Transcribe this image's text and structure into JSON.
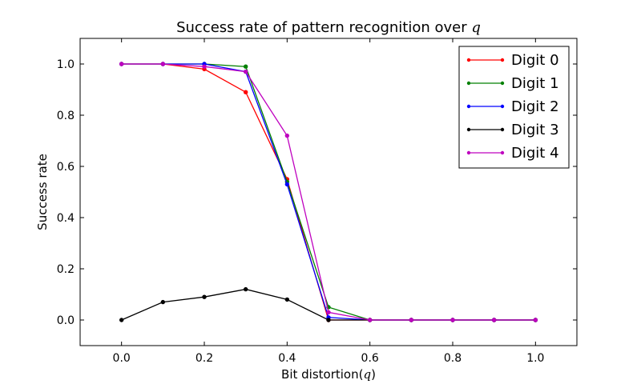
{
  "chart_data": {
    "type": "line",
    "title": "Success rate of pattern recognition over ",
    "title_symbol": "q",
    "xlabel": "Bit distortion(",
    "xlabel_symbol": "q",
    "xlabel_close": ")",
    "ylabel": "Success rate",
    "xlim": [
      -0.1,
      1.1
    ],
    "ylim": [
      -0.1,
      1.1
    ],
    "xticks": [
      0.0,
      0.2,
      0.4,
      0.6,
      0.8,
      1.0
    ],
    "yticks": [
      0.0,
      0.2,
      0.4,
      0.6,
      0.8,
      1.0
    ],
    "xtick_labels": [
      "0.0",
      "0.2",
      "0.4",
      "0.6",
      "0.8",
      "1.0"
    ],
    "ytick_labels": [
      "0.0",
      "0.2",
      "0.4",
      "0.6",
      "0.8",
      "1.0"
    ],
    "grid": false,
    "legend_position": "top-right",
    "x": [
      0.0,
      0.1,
      0.2,
      0.3,
      0.4,
      0.5,
      0.6,
      0.7,
      0.8,
      0.9,
      1.0
    ],
    "series": [
      {
        "name": "Digit 0",
        "color": "#ff0000",
        "values": [
          1.0,
          1.0,
          0.98,
          0.89,
          0.55,
          0.0,
          0.0,
          0.0,
          0.0,
          0.0,
          0.0
        ]
      },
      {
        "name": "Digit 1",
        "color": "#008000",
        "values": [
          1.0,
          1.0,
          1.0,
          0.99,
          0.54,
          0.05,
          0.0,
          0.0,
          0.0,
          0.0,
          0.0
        ]
      },
      {
        "name": "Digit 2",
        "color": "#0000ff",
        "values": [
          1.0,
          1.0,
          1.0,
          0.97,
          0.53,
          0.01,
          0.0,
          0.0,
          0.0,
          0.0,
          0.0
        ]
      },
      {
        "name": "Digit 3",
        "color": "#000000",
        "values": [
          0.0,
          0.07,
          0.09,
          0.12,
          0.08,
          0.0,
          0.0,
          0.0,
          0.0,
          0.0,
          0.0
        ]
      },
      {
        "name": "Digit 4",
        "color": "#bf00bf",
        "values": [
          1.0,
          1.0,
          0.99,
          0.97,
          0.72,
          0.03,
          0.0,
          0.0,
          0.0,
          0.0,
          0.0
        ]
      }
    ]
  }
}
